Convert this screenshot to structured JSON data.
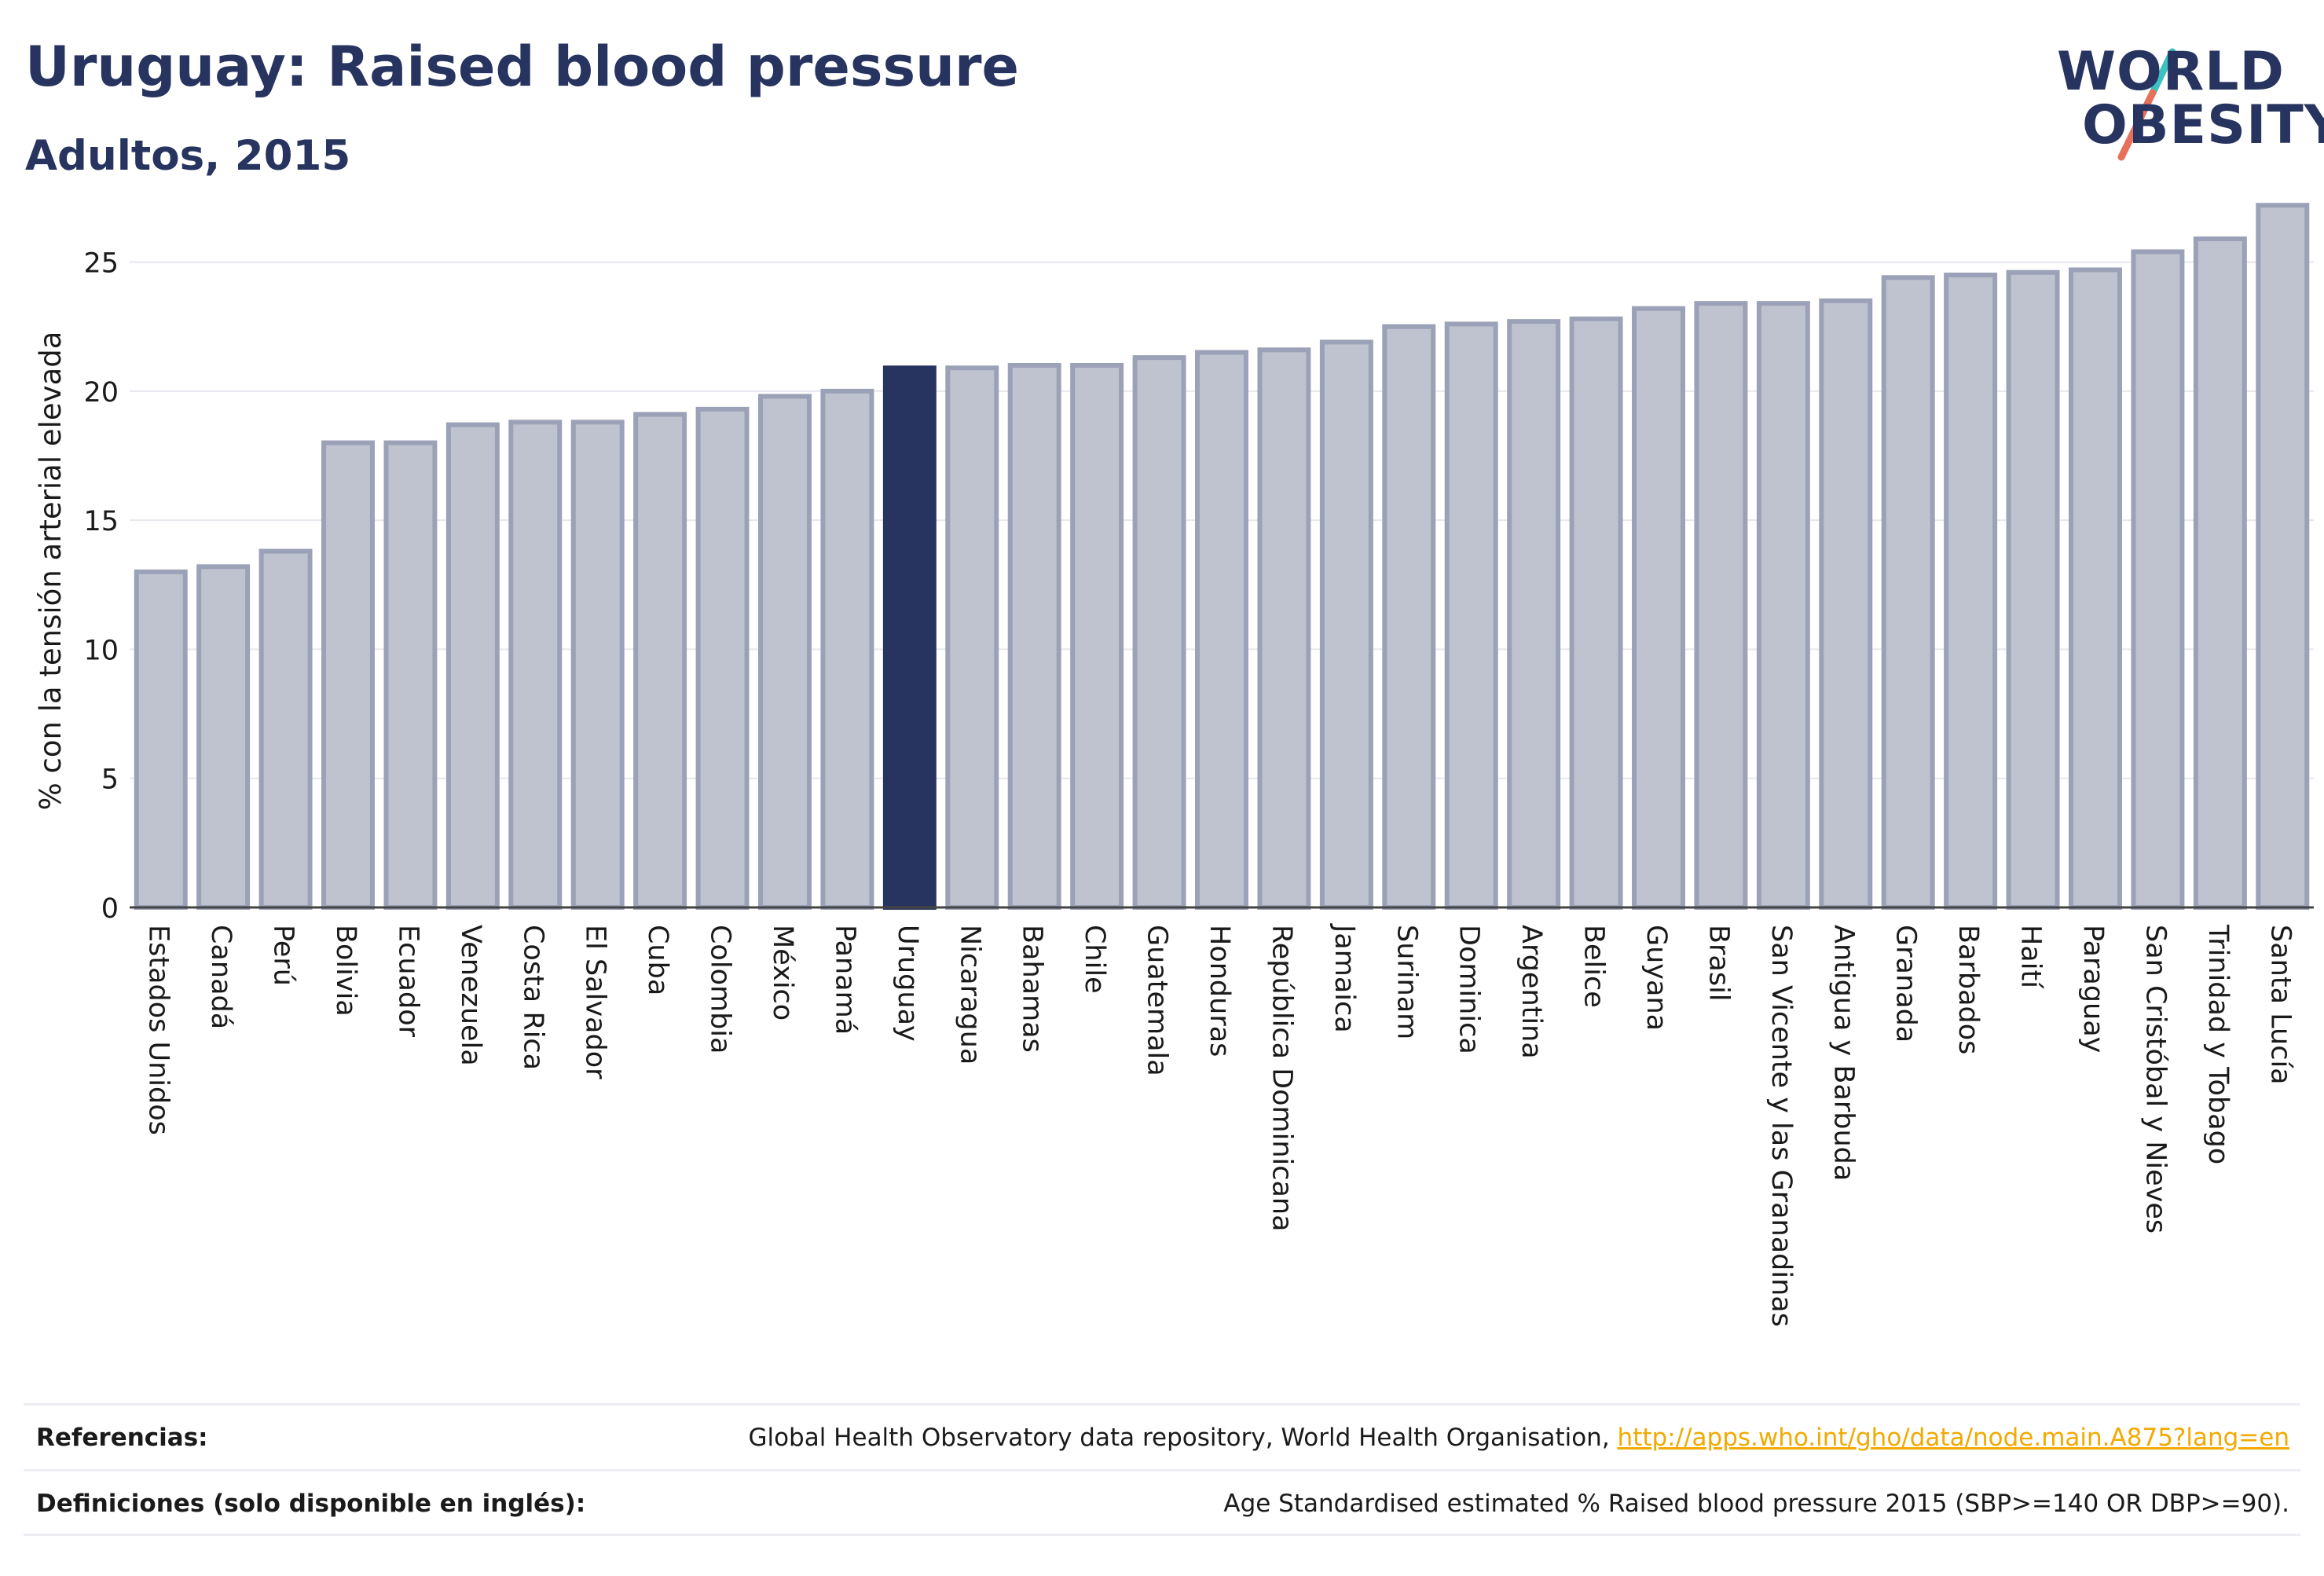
{
  "header": {
    "title": "Uruguay: Raised blood pressure",
    "subtitle": "Adultos, 2015"
  },
  "logo": {
    "line1": "WORLD",
    "line2": "OBESITY",
    "slash_colors": [
      "#3cc2c0",
      "#e8705a"
    ]
  },
  "colors": {
    "highlight": "#283460",
    "bar_fill": "#bfc3cf",
    "bar_stroke": "#9ba1b6",
    "axis_text": "#1a1a1a",
    "link": "#f2a900"
  },
  "chart_data": {
    "type": "bar",
    "ylabel": "% con la tensión arterial elevada",
    "ylim": [
      0,
      27.3
    ],
    "yticks": [
      0,
      5,
      10,
      15,
      20,
      25
    ],
    "highlight": "Uruguay",
    "grid": true,
    "categories": [
      "Estados Unidos",
      "Canadá",
      "Perú",
      "Bolivia",
      "Ecuador",
      "Venezuela",
      "Costa Rica",
      "El Salvador",
      "Cuba",
      "Colombia",
      "México",
      "Panamá",
      "Uruguay",
      "Nicaragua",
      "Bahamas",
      "Chile",
      "Guatemala",
      "Honduras",
      "República Dominicana",
      "Jamaica",
      "Surinam",
      "Dominica",
      "Argentina",
      "Belice",
      "Guyana",
      "Brasil",
      "San Vicente y las Granadinas",
      "Antigua y Barbuda",
      "Granada",
      "Barbados",
      "Haití",
      "Paraguay",
      "San Cristóbal y Nieves",
      "Trinidad y Tobago",
      "Santa Lucía"
    ],
    "values": [
      13.0,
      13.2,
      13.8,
      18.0,
      18.0,
      18.7,
      18.8,
      18.8,
      19.1,
      19.3,
      19.8,
      20.0,
      20.9,
      20.9,
      21.0,
      21.0,
      21.3,
      21.5,
      21.6,
      21.9,
      22.5,
      22.6,
      22.7,
      22.8,
      23.2,
      23.4,
      23.4,
      23.5,
      24.4,
      24.5,
      24.6,
      24.7,
      25.4,
      25.9,
      27.2
    ]
  },
  "footer": {
    "references_label": "Referencias:",
    "references_text": "Global Health Observatory data repository, World Health Organisation, ",
    "references_link": "http://apps.who.int/gho/data/node.main.A875?lang=en",
    "definitions_label": "Definiciones (solo disponible en inglés):",
    "definitions_text": "Age Standardised estimated % Raised blood pressure 2015 (SBP>=140 OR DBP>=90)."
  }
}
